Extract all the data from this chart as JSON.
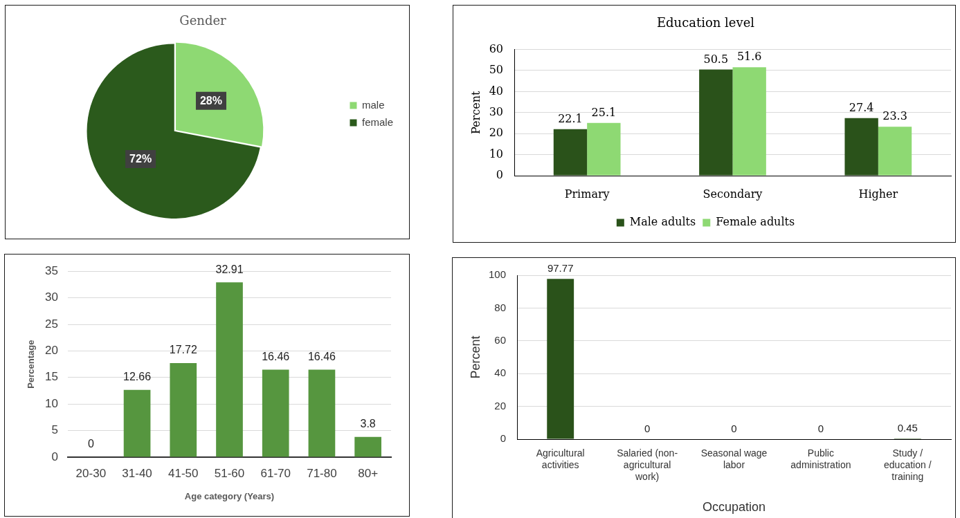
{
  "chart_data": [
    {
      "type": "pie",
      "title": "Gender",
      "categories": [
        "male",
        "female"
      ],
      "values": [
        28,
        72
      ],
      "colors": [
        "#8ed973",
        "#2b5a1c"
      ],
      "value_labels": [
        "28%",
        "72%"
      ],
      "legend": "right"
    },
    {
      "type": "bar",
      "title": "Education level",
      "ylabel": "Percent",
      "categories": [
        "Primary",
        "Secondary",
        "Higher"
      ],
      "series": [
        {
          "name": "Male adults",
          "color": "#2a521a",
          "values": [
            22.1,
            50.5,
            27.4
          ]
        },
        {
          "name": "Female adults",
          "color": "#8ed973",
          "values": [
            25.1,
            51.6,
            23.3
          ]
        }
      ],
      "ylim": [
        0,
        60
      ],
      "yticks": [
        0,
        10,
        20,
        30,
        40,
        50,
        60
      ],
      "grid": "y",
      "legend": "bottom",
      "data_labels": true
    },
    {
      "type": "bar",
      "xlabel": "Age category (Years)",
      "ylabel": "Percentage",
      "categories": [
        "20-30",
        "31-40",
        "41-50",
        "51-60",
        "61-70",
        "71-80",
        "80+"
      ],
      "values": [
        0,
        12.66,
        17.72,
        32.91,
        16.46,
        16.46,
        3.8
      ],
      "color": "#56963f",
      "ylim": [
        0,
        35
      ],
      "yticks": [
        0,
        5,
        10,
        15,
        20,
        25,
        30,
        35
      ],
      "grid": "y",
      "data_labels": true
    },
    {
      "type": "bar",
      "xlabel": "Occupation",
      "ylabel": "Percent",
      "categories": [
        "Agricultural activities",
        "Salaried (non-agricultural work)",
        "Seasonal wage labor",
        "Public administration",
        "Study / education / training"
      ],
      "values": [
        97.77,
        0,
        0,
        0,
        0.45
      ],
      "color": "#2a521a",
      "ylim": [
        0,
        100
      ],
      "yticks": [
        0,
        20,
        40,
        60,
        80,
        100
      ],
      "grid": "y",
      "data_labels": true
    }
  ]
}
